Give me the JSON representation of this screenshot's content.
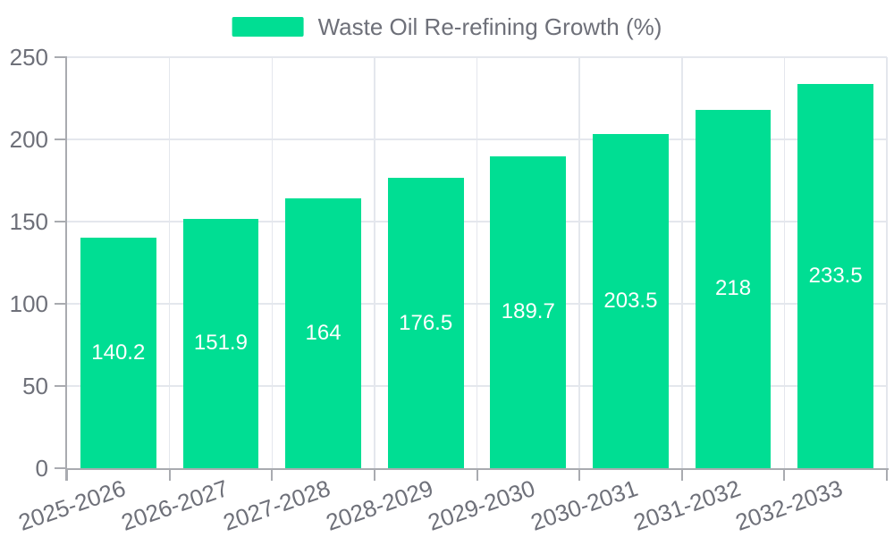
{
  "legend": {
    "label": "Waste Oil Re-refining Growth (%)"
  },
  "colors": {
    "bar": "#00DE93",
    "axis": "#A9ABB0",
    "grid": "#E4E7ED",
    "text": "#6E7079",
    "bar_label": "#FFFFFF",
    "background": "#FFFFFF"
  },
  "chart_data": {
    "type": "bar",
    "title": "",
    "xlabel": "",
    "ylabel": "",
    "categories": [
      "2025-2026",
      "2026-2027",
      "2027-2028",
      "2028-2029",
      "2029-2030",
      "2030-2031",
      "2031-2032",
      "2032-2033"
    ],
    "series": [
      {
        "name": "Waste Oil Re-refining Growth (%)",
        "values": [
          140.2,
          151.9,
          164,
          176.5,
          189.7,
          203.5,
          218,
          233.5
        ]
      }
    ],
    "value_labels_shown": true,
    "ylim": [
      0,
      250
    ],
    "yticks": [
      0,
      50,
      100,
      150,
      200,
      250
    ],
    "grid": true,
    "legend_position": "top-center",
    "x_label_rotation_deg": -19
  }
}
